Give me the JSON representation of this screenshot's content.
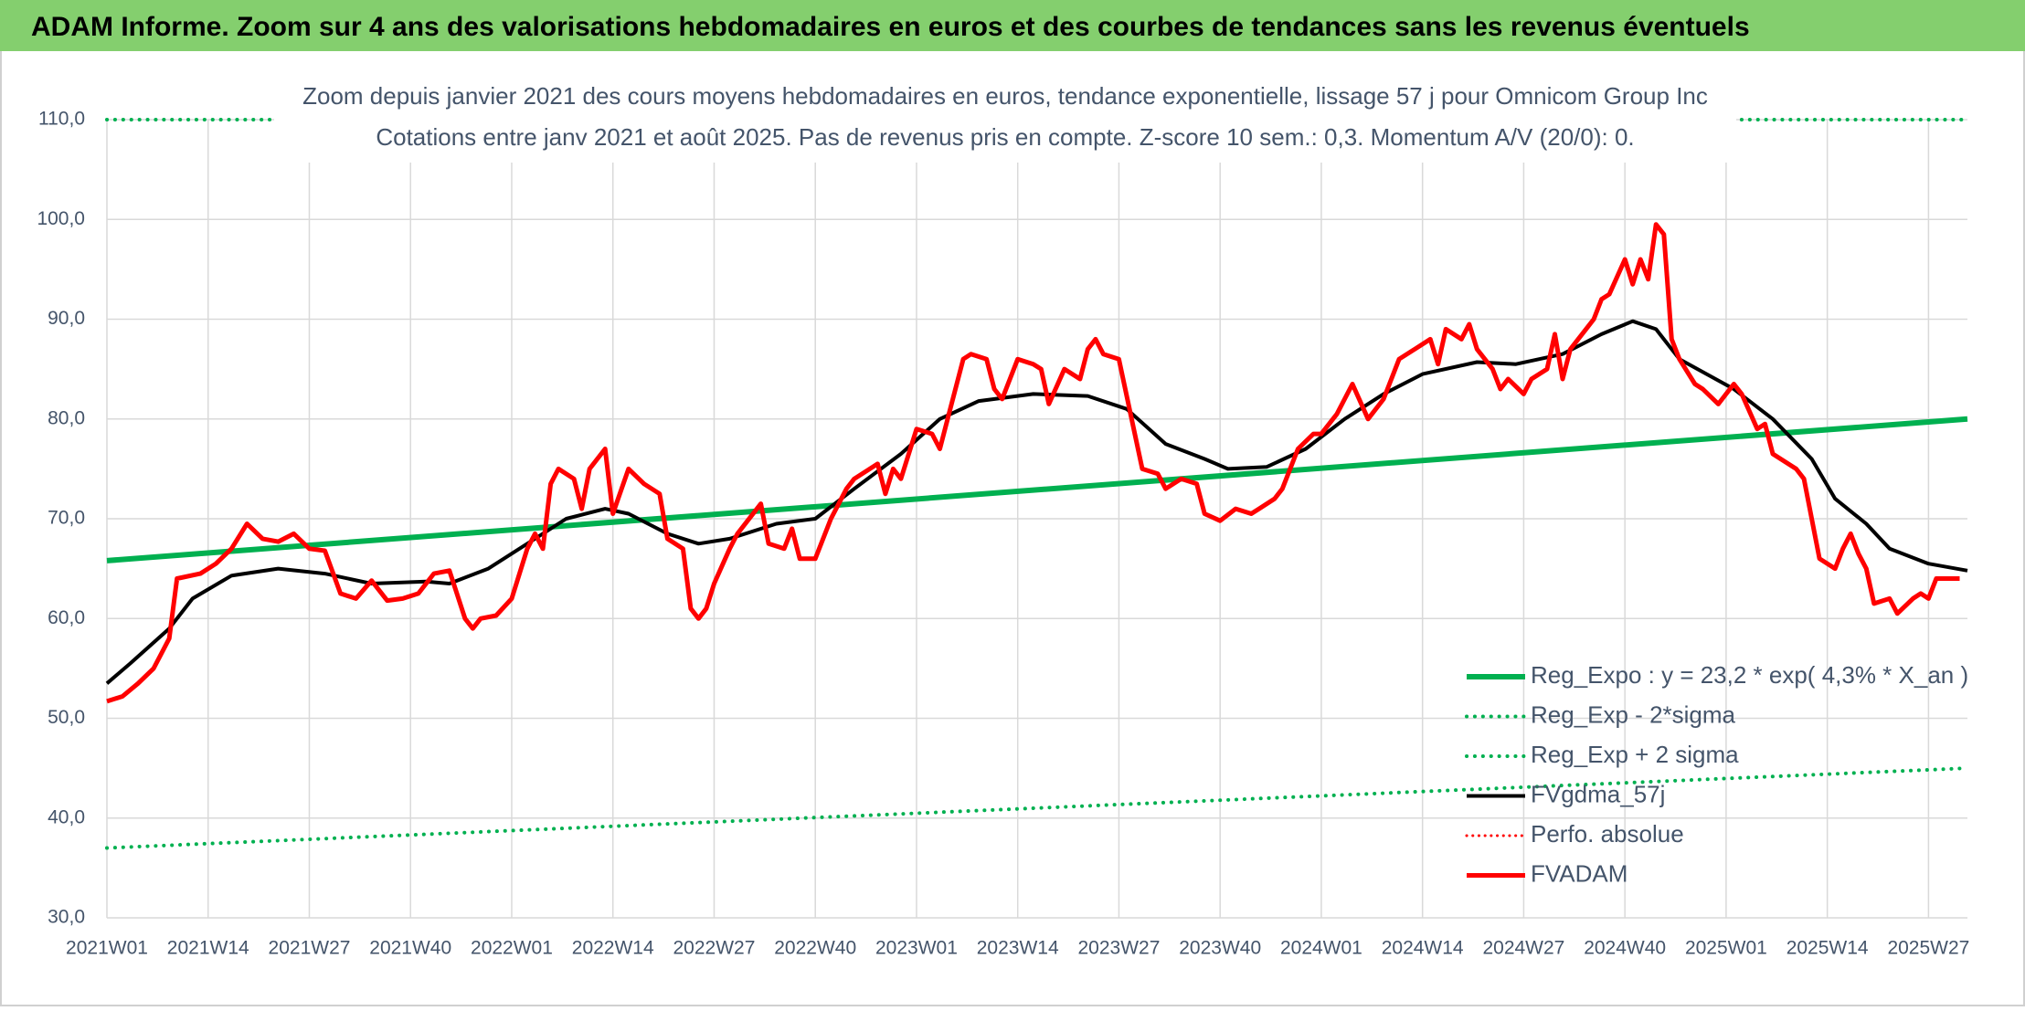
{
  "chart_data": {
    "type": "line",
    "title": "ADAM Informe. Zoom sur 4 ans des valorisations hebdomadaires en euros et des courbes de tendances sans les revenus éventuels",
    "subtitle": [
      "Zoom depuis janvier 2021 des cours moyens hebdomadaires en euros, tendance exponentielle, lissage 57 j pour Omnicom Group Inc",
      "Cotations entre janv 2021 et août 2025. Pas de revenus pris en compte. Z-score 10 sem.: 0,3. Momentum A/V (20/0): 0."
    ],
    "xlim": [
      0,
      239
    ],
    "xticks": [
      {
        "value": 0,
        "label": "2021W01"
      },
      {
        "value": 13,
        "label": "2021W14"
      },
      {
        "value": 26,
        "label": "2021W27"
      },
      {
        "value": 39,
        "label": "2021W40"
      },
      {
        "value": 52,
        "label": "2022W01"
      },
      {
        "value": 65,
        "label": "2022W14"
      },
      {
        "value": 78,
        "label": "2022W27"
      },
      {
        "value": 91,
        "label": "2022W40"
      },
      {
        "value": 104,
        "label": "2023W01"
      },
      {
        "value": 117,
        "label": "2023W14"
      },
      {
        "value": 130,
        "label": "2023W27"
      },
      {
        "value": 143,
        "label": "2023W40"
      },
      {
        "value": 156,
        "label": "2024W01"
      },
      {
        "value": 169,
        "label": "2024W14"
      },
      {
        "value": 182,
        "label": "2024W27"
      },
      {
        "value": 195,
        "label": "2024W40"
      },
      {
        "value": 208,
        "label": "2025W01"
      },
      {
        "value": 221,
        "label": "2025W14"
      },
      {
        "value": 234,
        "label": "2025W27"
      }
    ],
    "ylim": [
      30,
      110
    ],
    "yticks": [
      {
        "value": 30,
        "label": "30,0"
      },
      {
        "value": 40,
        "label": "40,0"
      },
      {
        "value": 50,
        "label": "50,0"
      },
      {
        "value": 60,
        "label": "60,0"
      },
      {
        "value": 70,
        "label": "70,0"
      },
      {
        "value": 80,
        "label": "80,0"
      },
      {
        "value": 90,
        "label": "90,0"
      },
      {
        "value": 100,
        "label": "100,0"
      },
      {
        "value": 110,
        "label": "110,0"
      }
    ],
    "grid": true,
    "legend": "bottom-right",
    "series": [
      {
        "name": "Reg_Expo : y = 23,2 * exp( 4,3% *  X_an )",
        "color": "#00b050",
        "style": "solid",
        "width": 6,
        "x": [
          0,
          239
        ],
        "values": [
          65.8,
          80.0
        ]
      },
      {
        "name": "Reg_Exp - 2*sigma",
        "color": "#00b050",
        "style": "dotted",
        "width": 4,
        "x": [
          0,
          239
        ],
        "values": [
          37.0,
          45.0
        ]
      },
      {
        "name": "Reg_Exp + 2 sigma",
        "color": "#00b050",
        "style": "dotted",
        "width": 4,
        "x": [
          0,
          239
        ],
        "values": [
          110,
          110
        ]
      },
      {
        "name": "FVgdma_57j",
        "color": "#000000",
        "style": "solid",
        "width": 4,
        "x": [
          0,
          3,
          8,
          11,
          16,
          22,
          28,
          34,
          41,
          44,
          49,
          54,
          59,
          64,
          67,
          72,
          76,
          80,
          86,
          91,
          96,
          102,
          107,
          112,
          119,
          126,
          131,
          136,
          141,
          144,
          149,
          154,
          159,
          164,
          169,
          176,
          181,
          187,
          192,
          196,
          199,
          202,
          209,
          214,
          219,
          222,
          226,
          229,
          234,
          239
        ],
        "values": [
          53.5,
          55.5,
          59,
          62,
          64.3,
          65,
          64.5,
          63.5,
          63.7,
          63.5,
          65,
          67.5,
          70,
          71,
          70.5,
          68.5,
          67.5,
          68,
          69.5,
          70,
          73,
          76.5,
          80,
          81.8,
          82.5,
          82.3,
          81,
          77.5,
          76,
          75,
          75.2,
          77,
          80,
          82.5,
          84.5,
          85.7,
          85.5,
          86.5,
          88.5,
          89.8,
          89,
          86,
          83,
          80,
          76,
          72,
          69.5,
          67,
          65.5,
          64.8
        ]
      },
      {
        "name": "Perfo. absolue",
        "color": "#ff0000",
        "style": "dotted",
        "width": 3,
        "x": [],
        "values": []
      },
      {
        "name": "FVADAM",
        "color": "#ff0000",
        "style": "solid",
        "width": 5,
        "x": [
          0,
          2,
          4,
          6,
          8,
          9,
          12,
          14,
          16,
          18,
          20,
          22,
          24,
          26,
          28,
          30,
          32,
          34,
          36,
          38,
          40,
          42,
          44,
          46,
          47,
          48,
          50,
          52,
          54,
          55,
          56,
          57,
          58,
          60,
          61,
          62,
          64,
          65,
          67,
          69,
          71,
          72,
          74,
          75,
          76,
          77,
          78,
          80,
          81,
          84,
          85,
          87,
          88,
          89,
          91,
          93,
          95,
          96,
          99,
          100,
          101,
          102,
          104,
          106,
          107,
          108,
          110,
          111,
          113,
          114,
          115,
          116,
          117,
          119,
          120,
          121,
          123,
          125,
          126,
          127,
          128,
          130,
          133,
          135,
          136,
          138,
          140,
          141,
          143,
          145,
          147,
          148,
          150,
          151,
          153,
          155,
          156,
          158,
          159,
          160,
          162,
          164,
          166,
          168,
          170,
          171,
          172,
          174,
          175,
          176,
          178,
          179,
          180,
          182,
          183,
          185,
          186,
          187,
          188,
          190,
          191,
          192,
          193,
          195,
          196,
          197,
          198,
          199,
          200,
          201,
          202,
          204,
          205,
          207,
          208,
          209,
          210,
          212,
          213,
          214,
          217,
          218,
          220,
          222,
          223,
          224,
          225,
          226,
          227,
          229,
          230,
          232,
          233,
          234,
          235,
          238
        ],
        "values": [
          51.7,
          52.2,
          53.5,
          55,
          58,
          64,
          64.5,
          65.5,
          67,
          69.5,
          68,
          67.7,
          68.5,
          67,
          66.8,
          62.5,
          62,
          63.8,
          61.8,
          62,
          62.5,
          64.5,
          64.8,
          60,
          59,
          60,
          60.3,
          62,
          67,
          68.5,
          67,
          73.5,
          75,
          74,
          71,
          75,
          77,
          70.5,
          75,
          73.5,
          72.5,
          68,
          67,
          61,
          60,
          61,
          63.5,
          67,
          68.5,
          71.5,
          67.5,
          67,
          69,
          66,
          66,
          70,
          73,
          74,
          75.5,
          72.5,
          75,
          74,
          79,
          78.5,
          77,
          80,
          86,
          86.5,
          86,
          83,
          82,
          84,
          86,
          85.5,
          85,
          81.5,
          85,
          84,
          87,
          88,
          86.5,
          86,
          75,
          74.5,
          73,
          74,
          73.5,
          70.5,
          69.8,
          71,
          70.5,
          71,
          72,
          73,
          77,
          78.5,
          78.5,
          80.5,
          82,
          83.5,
          80,
          82,
          86,
          87,
          88,
          85.5,
          89,
          88,
          89.5,
          87,
          85,
          83,
          84,
          82.5,
          84,
          85,
          88.5,
          84,
          87,
          89,
          90,
          92,
          92.5,
          96,
          93.5,
          96,
          94,
          99.5,
          98.5,
          88,
          86,
          83.5,
          83,
          81.5,
          82.5,
          83.5,
          82.5,
          79,
          79.5,
          76.5,
          75,
          74,
          66,
          65,
          67,
          68.5,
          66.5,
          65,
          61.5,
          62,
          60.5,
          62,
          62.5,
          62,
          64,
          64
        ]
      }
    ]
  }
}
